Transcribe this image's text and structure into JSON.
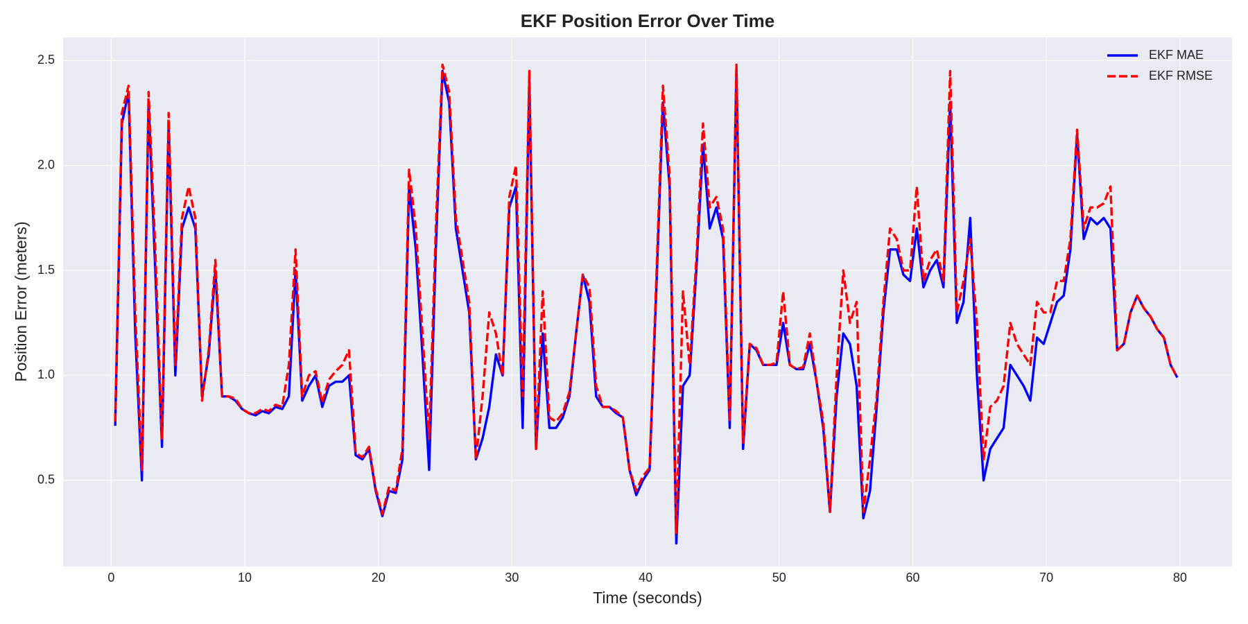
{
  "chart_data": {
    "type": "line",
    "title": "EKF Position Error Over Time",
    "x_label": "Time (seconds)",
    "y_label": "Position Error (meters)",
    "xlim": [
      -3.6,
      83.9
    ],
    "ylim": [
      0.09,
      2.61
    ],
    "xticks": [
      0,
      10,
      20,
      30,
      40,
      50,
      60,
      70,
      80
    ],
    "yticks": [
      0.5,
      {
        "value": 1,
        "label": "1.0"
      },
      1.5,
      {
        "value": 2,
        "label": "2.0"
      },
      2.5
    ],
    "grid": true,
    "legend": "upper right",
    "x": [
      0.3,
      0.8,
      1.3,
      1.8,
      2.3,
      2.8,
      3.3,
      3.8,
      4.3,
      4.8,
      5.3,
      5.8,
      6.3,
      6.8,
      7.3,
      7.8,
      8.3,
      8.8,
      9.3,
      9.8,
      10.3,
      10.8,
      11.3,
      11.8,
      12.3,
      12.8,
      13.3,
      13.8,
      14.3,
      14.8,
      15.3,
      15.8,
      16.3,
      16.8,
      17.3,
      17.8,
      18.3,
      18.8,
      19.3,
      19.8,
      20.3,
      20.8,
      21.3,
      21.8,
      22.3,
      22.8,
      23.3,
      23.8,
      24.3,
      24.8,
      25.3,
      25.8,
      26.3,
      26.8,
      27.3,
      27.8,
      28.3,
      28.8,
      29.3,
      29.8,
      30.3,
      30.8,
      31.3,
      31.8,
      32.3,
      32.8,
      33.3,
      33.8,
      34.3,
      34.8,
      35.3,
      35.8,
      36.3,
      36.8,
      37.3,
      37.8,
      38.3,
      38.8,
      39.3,
      39.8,
      40.3,
      40.8,
      41.3,
      41.8,
      42.3,
      42.8,
      43.3,
      43.8,
      44.3,
      44.8,
      45.3,
      45.8,
      46.3,
      46.8,
      47.3,
      47.8,
      48.3,
      48.8,
      49.3,
      49.8,
      50.3,
      50.8,
      51.3,
      51.8,
      52.3,
      52.8,
      53.3,
      53.8,
      54.3,
      54.8,
      55.3,
      55.8,
      56.3,
      56.8,
      57.3,
      57.8,
      58.3,
      58.8,
      59.3,
      59.8,
      60.3,
      60.8,
      61.3,
      61.8,
      62.3,
      62.8,
      63.3,
      63.8,
      64.3,
      64.8,
      65.3,
      65.8,
      66.3,
      66.8,
      67.3,
      67.8,
      68.3,
      68.8,
      69.3,
      69.8,
      70.3,
      70.8,
      71.3,
      71.8,
      72.3,
      72.8,
      73.3,
      73.8,
      74.3,
      74.8,
      75.3,
      75.8,
      76.3,
      76.8,
      77.3,
      77.8,
      78.3,
      78.8,
      79.3,
      79.8
    ],
    "series": [
      {
        "name": "EKF MAE",
        "color": "#0000ff",
        "style": "solid",
        "values": [
          0.76,
          2.2,
          2.35,
          1.2,
          0.5,
          2.3,
          1.5,
          0.66,
          2.2,
          1.0,
          1.7,
          1.8,
          1.7,
          0.9,
          1.1,
          1.5,
          0.9,
          0.9,
          0.88,
          0.84,
          0.82,
          0.81,
          0.83,
          0.82,
          0.85,
          0.84,
          0.9,
          1.5,
          0.88,
          0.95,
          1.0,
          0.85,
          0.95,
          0.97,
          0.97,
          1.0,
          0.62,
          0.6,
          0.65,
          0.45,
          0.33,
          0.45,
          0.44,
          0.6,
          1.9,
          1.6,
          1.1,
          0.55,
          1.6,
          2.45,
          2.3,
          1.7,
          1.5,
          1.3,
          0.6,
          0.7,
          0.85,
          1.1,
          1.0,
          1.8,
          1.9,
          0.75,
          2.4,
          0.65,
          1.2,
          0.75,
          0.75,
          0.8,
          0.9,
          1.2,
          1.48,
          1.35,
          0.9,
          0.85,
          0.85,
          0.82,
          0.8,
          0.55,
          0.43,
          0.5,
          0.55,
          1.4,
          2.3,
          1.9,
          0.2,
          0.95,
          1.0,
          1.5,
          2.1,
          1.7,
          1.8,
          1.65,
          0.75,
          2.45,
          0.65,
          1.15,
          1.12,
          1.05,
          1.05,
          1.05,
          1.25,
          1.05,
          1.03,
          1.03,
          1.15,
          0.97,
          0.75,
          0.35,
          0.9,
          1.2,
          1.15,
          0.95,
          0.32,
          0.45,
          0.85,
          1.3,
          1.6,
          1.6,
          1.48,
          1.45,
          1.7,
          1.42,
          1.5,
          1.55,
          1.42,
          2.3,
          1.25,
          1.35,
          1.75,
          1.0,
          0.5,
          0.65,
          0.7,
          0.75,
          1.05,
          1.0,
          0.95,
          0.88,
          1.18,
          1.15,
          1.25,
          1.35,
          1.38,
          1.6,
          2.15,
          1.65,
          1.75,
          1.72,
          1.75,
          1.7,
          1.12,
          1.15,
          1.3,
          1.38,
          1.32,
          1.28,
          1.22,
          1.18,
          1.05,
          0.99
        ]
      },
      {
        "name": "EKF RMSE",
        "color": "#ff0000",
        "style": "dashed",
        "values": [
          0.78,
          2.25,
          2.38,
          1.3,
          0.55,
          2.35,
          1.6,
          0.7,
          2.25,
          1.05,
          1.75,
          1.9,
          1.75,
          0.88,
          1.12,
          1.55,
          0.9,
          0.9,
          0.89,
          0.84,
          0.82,
          0.82,
          0.84,
          0.83,
          0.86,
          0.85,
          1.05,
          1.6,
          0.9,
          1.0,
          1.02,
          0.87,
          0.98,
          1.02,
          1.05,
          1.12,
          0.63,
          0.61,
          0.66,
          0.46,
          0.34,
          0.47,
          0.45,
          0.65,
          1.98,
          1.7,
          1.2,
          0.7,
          1.7,
          2.48,
          2.35,
          1.75,
          1.55,
          1.35,
          0.6,
          0.9,
          1.3,
          1.2,
          1.0,
          1.85,
          2.0,
          0.9,
          2.45,
          0.65,
          1.4,
          0.8,
          0.78,
          0.82,
          0.92,
          1.2,
          1.48,
          1.42,
          0.95,
          0.85,
          0.85,
          0.83,
          0.8,
          0.55,
          0.45,
          0.52,
          0.56,
          1.45,
          2.38,
          1.95,
          0.25,
          1.4,
          1.05,
          1.55,
          2.2,
          1.8,
          1.85,
          1.7,
          0.78,
          2.48,
          0.68,
          1.15,
          1.13,
          1.05,
          1.05,
          1.06,
          1.4,
          1.05,
          1.03,
          1.04,
          1.2,
          0.97,
          0.78,
          0.35,
          1.0,
          1.5,
          1.25,
          1.35,
          0.35,
          0.6,
          0.9,
          1.35,
          1.7,
          1.65,
          1.5,
          1.5,
          1.9,
          1.45,
          1.55,
          1.6,
          1.45,
          2.45,
          1.3,
          1.45,
          1.65,
          1.25,
          0.6,
          0.85,
          0.88,
          0.95,
          1.25,
          1.15,
          1.1,
          1.05,
          1.35,
          1.3,
          1.3,
          1.45,
          1.45,
          1.65,
          2.17,
          1.7,
          1.8,
          1.8,
          1.82,
          1.9,
          1.12,
          1.15,
          1.3,
          1.38,
          1.32,
          1.28,
          1.22,
          1.18,
          1.05,
          0.99
        ]
      }
    ]
  }
}
